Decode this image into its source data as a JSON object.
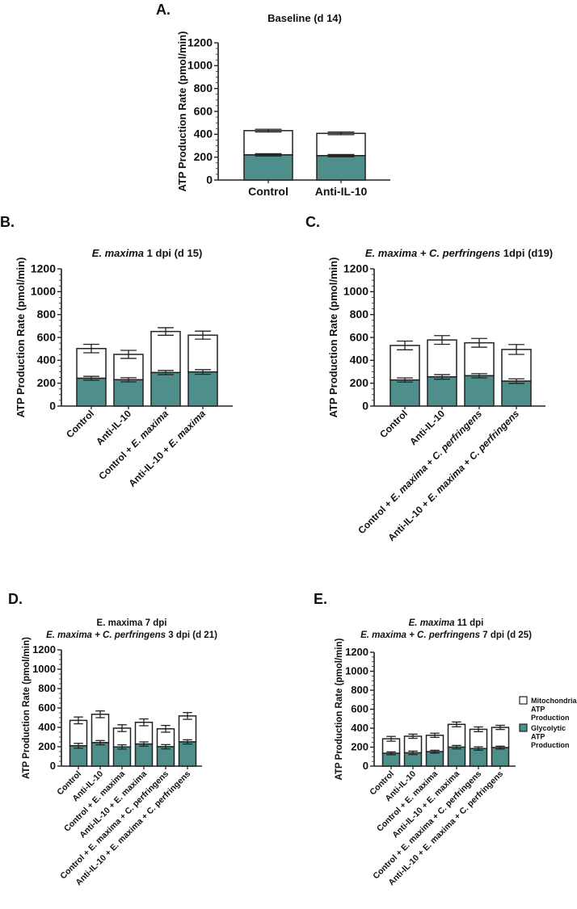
{
  "colors": {
    "glycolytic": "#4f8f8b",
    "mitochondrial": "#ffffff",
    "stroke": "#222222"
  },
  "legend": {
    "items": [
      {
        "lines": [
          "Mitochondrial",
          "ATP",
          "Production"
        ],
        "series": "mitochondrial"
      },
      {
        "lines": [
          "Glycolytic",
          "ATP",
          "Production"
        ],
        "series": "glycolytic"
      }
    ]
  },
  "chart_data": [
    {
      "panel": "A.",
      "type": "bar",
      "stacked": true,
      "title_lines": [
        [
          {
            "text": "Baseline (d 14)",
            "italic": false
          }
        ]
      ],
      "ylabel": "ATP Production Rate (pmol/min)",
      "ylim": [
        0,
        1200
      ],
      "yticks": [
        0,
        200,
        400,
        600,
        800,
        1000,
        1200
      ],
      "italic_terms": [],
      "categories": [
        "Control",
        "Anti-IL-10"
      ],
      "series": [
        {
          "name": "Glycolytic ATP Production",
          "key": "glycolytic",
          "values": [
            220,
            213
          ],
          "errors": [
            10,
            10
          ]
        },
        {
          "name": "Mitochondrial ATP Production",
          "key": "mitochondrial",
          "values": [
            212,
            195
          ],
          "errors": [
            12,
            12
          ]
        }
      ]
    },
    {
      "panel": "B.",
      "type": "bar",
      "stacked": true,
      "title_lines": [
        [
          {
            "text": "E. maxima",
            "italic": true
          },
          {
            "text": " 1 dpi (d 15)",
            "italic": false
          }
        ]
      ],
      "ylabel": "ATP Production Rate (pmol/min)",
      "ylim": [
        0,
        1200
      ],
      "yticks": [
        0,
        200,
        400,
        600,
        800,
        1000,
        1200
      ],
      "italic_terms": [
        "E. maxima"
      ],
      "categories": [
        "Control",
        "Anti-IL-10",
        "Control + E. maxima",
        "Anti-IL-10 + E. maxima"
      ],
      "series": [
        {
          "name": "Glycolytic ATP Production",
          "key": "glycolytic",
          "values": [
            243,
            230,
            293,
            298
          ],
          "errors": [
            17,
            18,
            18,
            20
          ]
        },
        {
          "name": "Mitochondrial ATP Production",
          "key": "mitochondrial",
          "values": [
            260,
            222,
            359,
            322
          ],
          "errors": [
            37,
            35,
            33,
            35
          ]
        }
      ]
    },
    {
      "panel": "C.",
      "type": "bar",
      "stacked": true,
      "title_lines": [
        [
          {
            "text": "E. maxima + C. perfringens",
            "italic": true
          },
          {
            "text": " 1dpi (d19)",
            "italic": false
          }
        ]
      ],
      "ylabel": "ATP Production Rate (pmol/min)",
      "ylim": [
        0,
        1200
      ],
      "yticks": [
        0,
        200,
        400,
        600,
        800,
        1000,
        1200
      ],
      "italic_terms": [
        "E. maxima",
        "C. perfringens"
      ],
      "categories": [
        "Control",
        "Anti-IL-10",
        "Control + E. maxima + C. perfringens",
        "Anti-IL-10 + E. maxima + C. perfringens"
      ],
      "series": [
        {
          "name": "Glycolytic ATP Production",
          "key": "glycolytic",
          "values": [
            228,
            255,
            265,
            218
          ],
          "errors": [
            18,
            20,
            18,
            20
          ]
        },
        {
          "name": "Mitochondrial ATP Production",
          "key": "mitochondrial",
          "values": [
            302,
            323,
            288,
            277
          ],
          "errors": [
            38,
            38,
            38,
            43
          ]
        }
      ]
    },
    {
      "panel": "D.",
      "type": "bar",
      "stacked": true,
      "title_lines": [
        [
          {
            "text": "E. maxima 7 dpi",
            "italic": false
          }
        ],
        [
          {
            "text": "E. maxima + C. perfringens",
            "italic": true
          },
          {
            "text": " 3 dpi (d 21)",
            "italic": false
          }
        ]
      ],
      "ylabel": "ATP Production Rate (pmol/min)",
      "ylim": [
        0,
        1200
      ],
      "yticks": [
        0,
        200,
        400,
        600,
        800,
        1000,
        1200
      ],
      "italic_terms": [],
      "categories": [
        "Control",
        "Anti-IL-10",
        "Control + E. maxima",
        "Anti-IL-10 + E. maxima",
        "Control + E. maxima + C. perfringens",
        "Anti-IL-10 + E. maxima + C. perfringens"
      ],
      "series": [
        {
          "name": "Glycolytic ATP Production",
          "key": "glycolytic",
          "values": [
            210,
            242,
            198,
            228,
            200,
            250
          ],
          "errors": [
            25,
            22,
            22,
            22,
            22,
            22
          ]
        },
        {
          "name": "Mitochondrial ATP Production",
          "key": "mitochondrial",
          "values": [
            262,
            293,
            194,
            224,
            185,
            268
          ],
          "errors": [
            35,
            35,
            35,
            35,
            35,
            35
          ]
        }
      ]
    },
    {
      "panel": "E.",
      "type": "bar",
      "stacked": true,
      "title_lines": [
        [
          {
            "text": "E. maxima",
            "italic": true
          },
          {
            "text": " 11 dpi",
            "italic": false
          }
        ],
        [
          {
            "text": "E. maxima + C. perfringens",
            "italic": true
          },
          {
            "text": " 7 dpi (d 25)",
            "italic": false
          }
        ]
      ],
      "ylabel": "ATP Production Rate (pmol/min)",
      "ylim": [
        0,
        1200
      ],
      "yticks": [
        0,
        200,
        400,
        600,
        800,
        1000,
        1200
      ],
      "italic_terms": [],
      "legend_position": "right",
      "categories": [
        "Control",
        "Anti-IL-10",
        "Control + E. maxima",
        "Anti-IL-10 + E. maxima",
        "Control + E. maxima + C. perfringens",
        "Anti-IL-10 + E. maxima + C. perfringens"
      ],
      "series": [
        {
          "name": "Glycolytic ATP Production",
          "key": "glycolytic",
          "values": [
            135,
            140,
            152,
            200,
            185,
            195
          ],
          "errors": [
            15,
            18,
            15,
            18,
            18,
            15
          ]
        },
        {
          "name": "Mitochondrial ATP Production",
          "key": "mitochondrial",
          "values": [
            153,
            175,
            173,
            240,
            203,
            213
          ],
          "errors": [
            25,
            22,
            22,
            25,
            25,
            22
          ]
        }
      ]
    }
  ]
}
